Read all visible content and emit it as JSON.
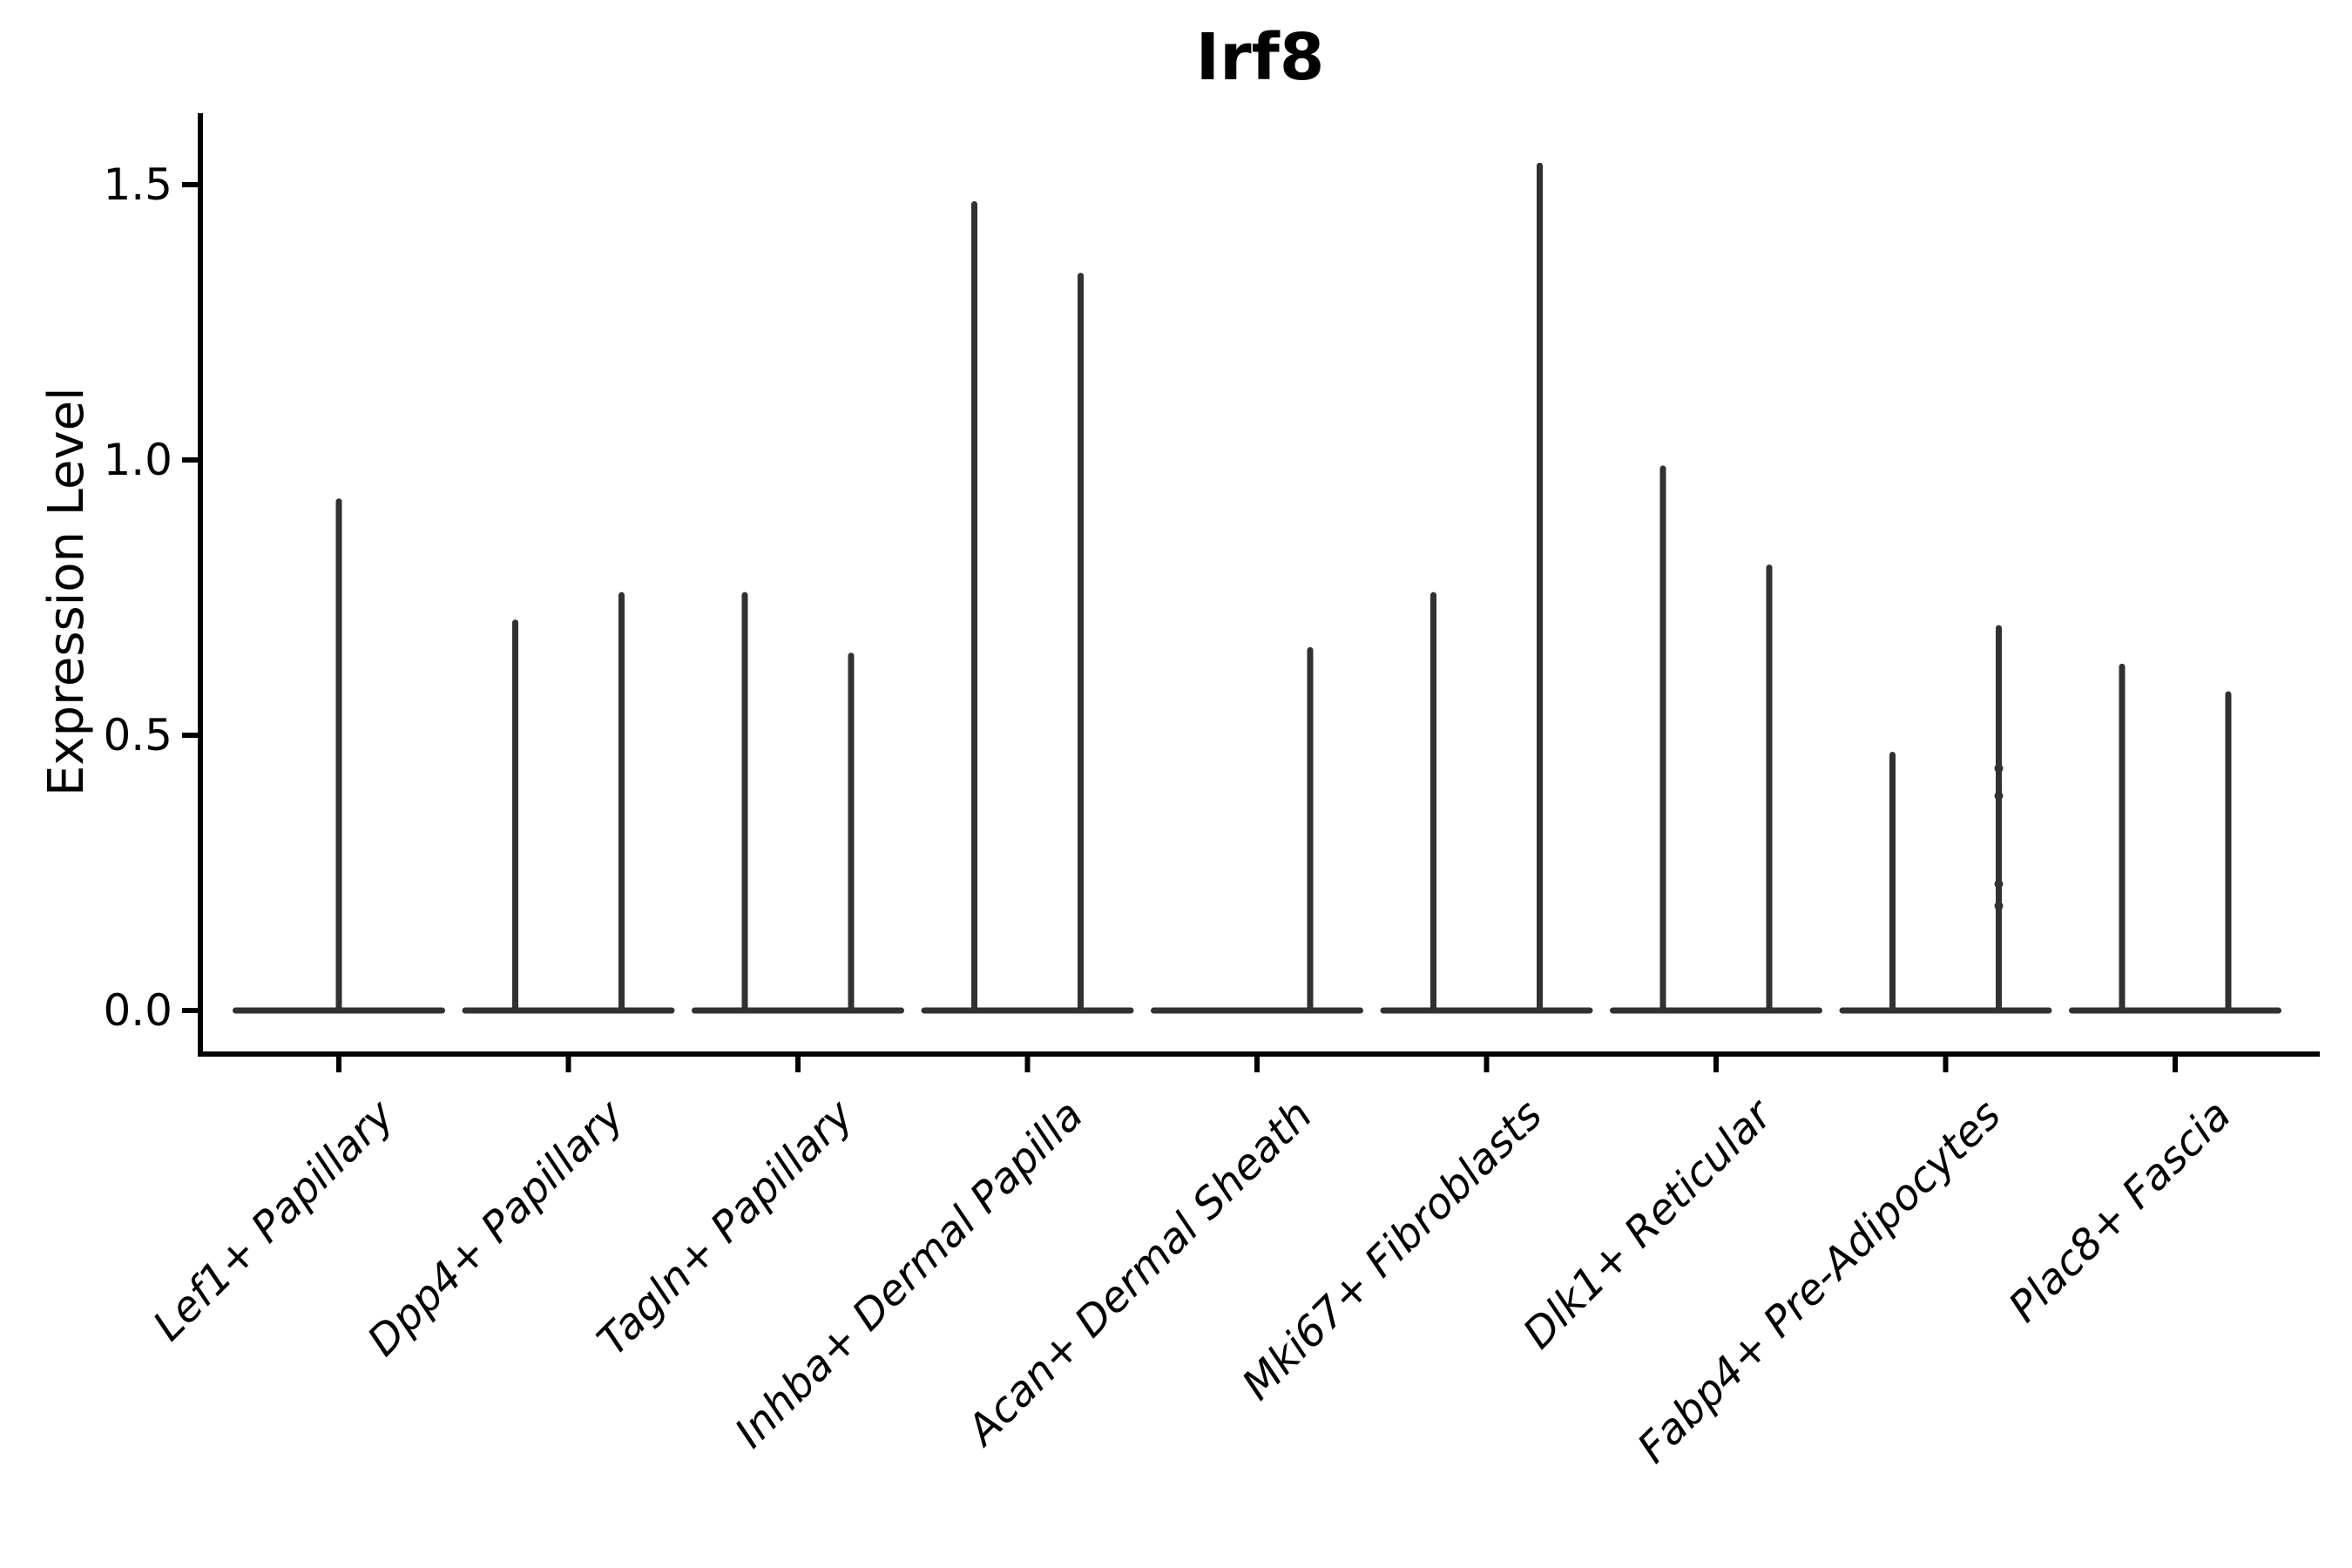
{
  "figure": {
    "title": "Irf8"
  },
  "y_axis": {
    "label": "Expression Level",
    "tick_labels": [
      "0.0",
      "0.5",
      "1.0",
      "1.5"
    ]
  },
  "chart_data": {
    "type": "violin",
    "title": "Irf8",
    "xlabel": "",
    "ylabel": "Expression Level",
    "ylim": [
      -0.08,
      1.63
    ],
    "yticks": [
      0.0,
      0.5,
      1.0,
      1.5
    ],
    "grid": false,
    "legend": "none",
    "x_tick_rotation": 45,
    "categories": [
      "Lef1+ Papillary",
      "Dpp4+ Papillary",
      "Tagln+ Papillary",
      "Inhba+ Dermal Papilla",
      "Acan+ Dermal Sheath",
      "Mki67+ Fibroblasts",
      "Dlk1+ Reticular",
      "Fabp4+ Pre-Adipocytes",
      "Plac8+ Fascia"
    ],
    "violins": [
      {
        "category": "Lef1+ Papillary",
        "parts": [
          {
            "dodge": "center",
            "max_expression": 0.93
          }
        ]
      },
      {
        "category": "Dpp4+ Papillary",
        "parts": [
          {
            "dodge": "left",
            "max_expression": 0.71
          },
          {
            "dodge": "right",
            "max_expression": 0.76
          }
        ]
      },
      {
        "category": "Tagln+ Papillary",
        "parts": [
          {
            "dodge": "left",
            "max_expression": 0.76
          },
          {
            "dodge": "right",
            "max_expression": 0.65
          }
        ]
      },
      {
        "category": "Inhba+ Dermal Papilla",
        "parts": [
          {
            "dodge": "left",
            "max_expression": 1.47
          },
          {
            "dodge": "right",
            "max_expression": 1.34
          }
        ]
      },
      {
        "category": "Acan+ Dermal Sheath",
        "parts": [
          {
            "dodge": "left",
            "max_expression": 0.0
          },
          {
            "dodge": "right",
            "max_expression": 0.66
          }
        ]
      },
      {
        "category": "Mki67+ Fibroblasts",
        "parts": [
          {
            "dodge": "left",
            "max_expression": 0.76
          },
          {
            "dodge": "right",
            "max_expression": 1.54
          }
        ]
      },
      {
        "category": "Dlk1+ Reticular",
        "parts": [
          {
            "dodge": "left",
            "max_expression": 0.99
          },
          {
            "dodge": "right",
            "max_expression": 0.81
          }
        ]
      },
      {
        "category": "Fabp4+ Pre-Adipocytes",
        "parts": [
          {
            "dodge": "left",
            "max_expression": 0.47
          },
          {
            "dodge": "right",
            "max_expression": 0.7,
            "point_values": [
              0.44,
              0.39,
              0.23,
              0.19
            ]
          }
        ]
      },
      {
        "category": "Plac8+ Fascia",
        "parts": [
          {
            "dodge": "left",
            "max_expression": 0.63
          },
          {
            "dodge": "right",
            "max_expression": 0.58
          }
        ]
      }
    ],
    "style": {
      "violin_color": "#313131",
      "axis_color": "#000000",
      "text_color": "#000000",
      "background": "#ffffff"
    }
  }
}
